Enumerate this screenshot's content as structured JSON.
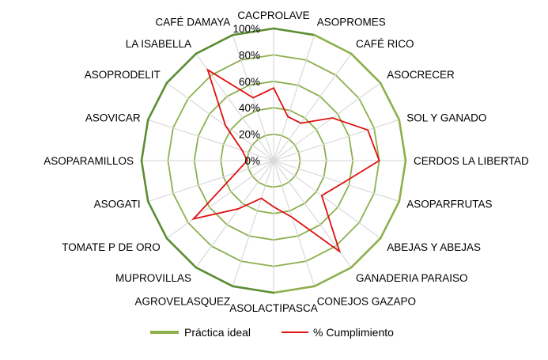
{
  "chart_data": {
    "type": "radar",
    "categories": [
      "CACPROLAVE",
      "ASOPROMES",
      "CAFÉ RICO",
      "ASOCRECER",
      "SOL Y GANADO",
      "CERDOS LA LIBERTAD",
      "ASOPARFRUTAS",
      "ABEJAS Y ABEJAS",
      "GANADERIA PARAISO",
      "CONEJOS GAZAPO",
      "ASOLACTIPASCA",
      "AGROVELASQUEZ",
      "MUPROVILLAS",
      "TOMATE P DE ORO",
      "ASOGATI",
      "ASOPARAMILLOS",
      "ASOVICAR",
      "ASOPRODELIT",
      "LA ISABELLA",
      "CAFÉ DAMAYA"
    ],
    "series": [
      {
        "name": "Práctica ideal",
        "values": [
          100,
          100,
          100,
          100,
          100,
          100,
          100,
          100,
          100,
          100,
          100,
          100,
          100,
          100,
          100,
          100,
          100,
          100,
          100,
          100
        ],
        "color": "#8db04d"
      },
      {
        "name": "% Cumplimiento",
        "values": [
          55,
          35,
          35,
          55,
          75,
          80,
          55,
          45,
          85,
          45,
          35,
          30,
          45,
          75,
          30,
          20,
          25,
          45,
          85,
          50
        ],
        "color": "#e01010"
      }
    ],
    "radial_ticks": [
      "0%",
      "20%",
      "40%",
      "60%",
      "80%",
      "100%"
    ],
    "rlim": [
      0,
      100
    ],
    "grid": true,
    "legend_position": "bottom"
  }
}
